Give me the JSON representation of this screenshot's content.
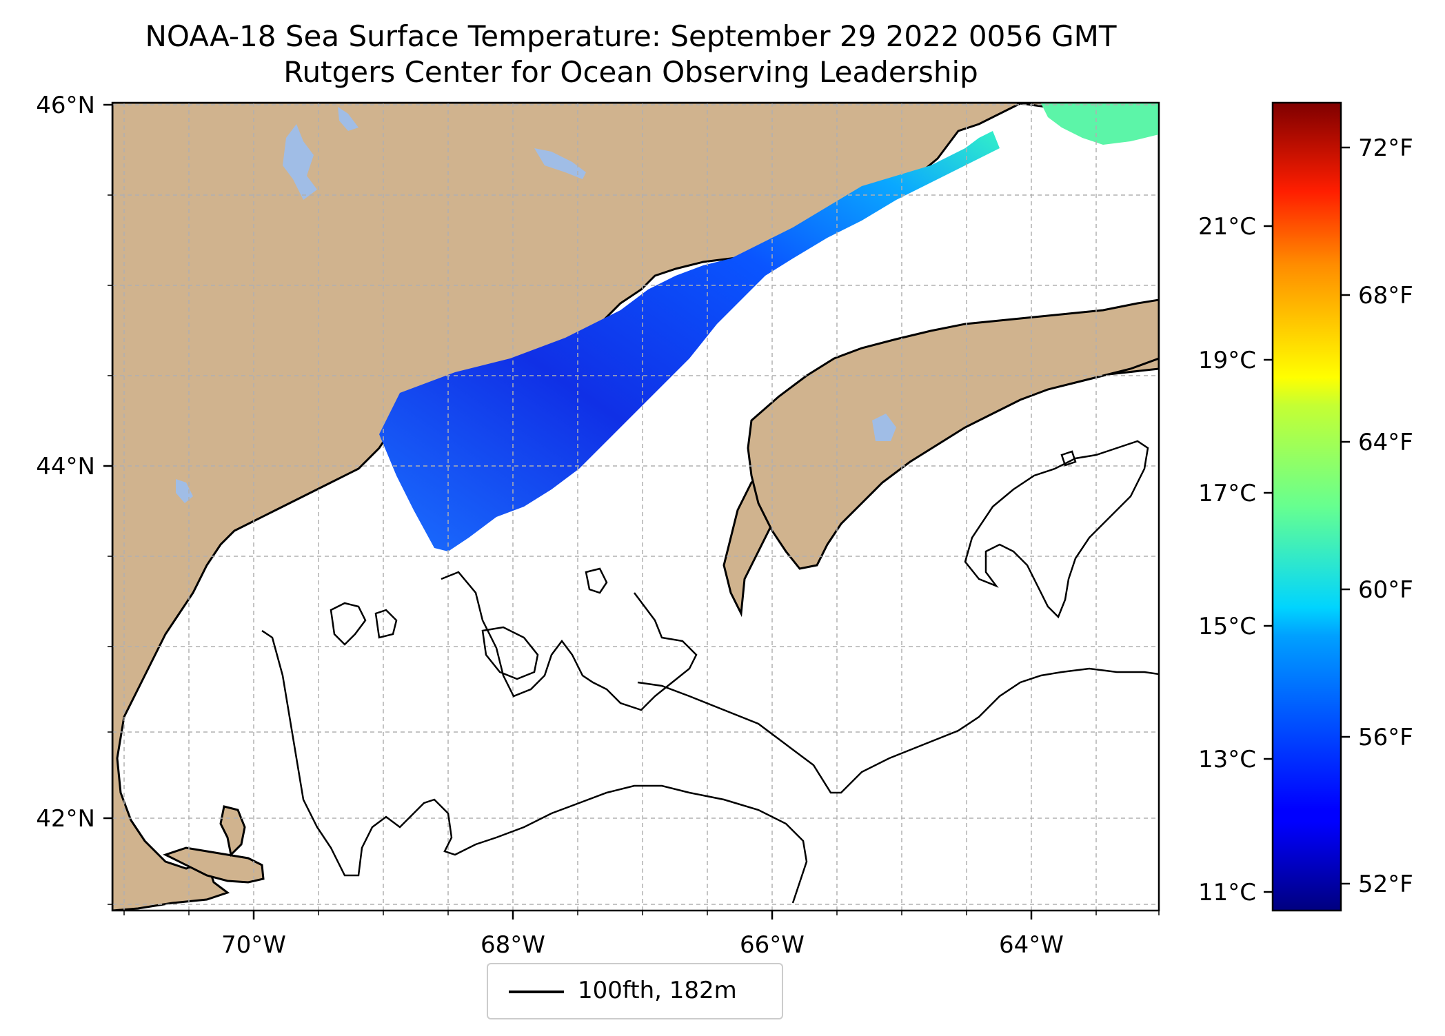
{
  "title": "NOAA-18 Sea Surface Temperature: September 29 2022 0056 GMT",
  "subtitle": "Rutgers Center for Ocean Observing Leadership",
  "colors": {
    "land": "#d0b38e",
    "lakes": "#a0bde6",
    "coast": "#000000",
    "grid": "#b0b0b0"
  },
  "map": {
    "lat_ticks": [
      "46°N",
      "44°N",
      "42°N"
    ],
    "lon_ticks": [
      "70°W",
      "68°W",
      "66°W",
      "64°W"
    ],
    "lon_range": [
      -71.1,
      -63.0
    ],
    "lat_range": [
      41.55,
      46.0
    ]
  },
  "colorbar": {
    "celsius_ticks": [
      "21°C",
      "19°C",
      "17°C",
      "15°C",
      "13°C",
      "11°C"
    ],
    "fahrenheit_ticks": [
      "72°F",
      "68°F",
      "64°F",
      "60°F",
      "56°F",
      "52°F"
    ],
    "range_f": [
      51,
      73
    ],
    "colormap": "jet"
  },
  "legend": {
    "label": "100fth, 182m",
    "line_color": "#000000"
  }
}
